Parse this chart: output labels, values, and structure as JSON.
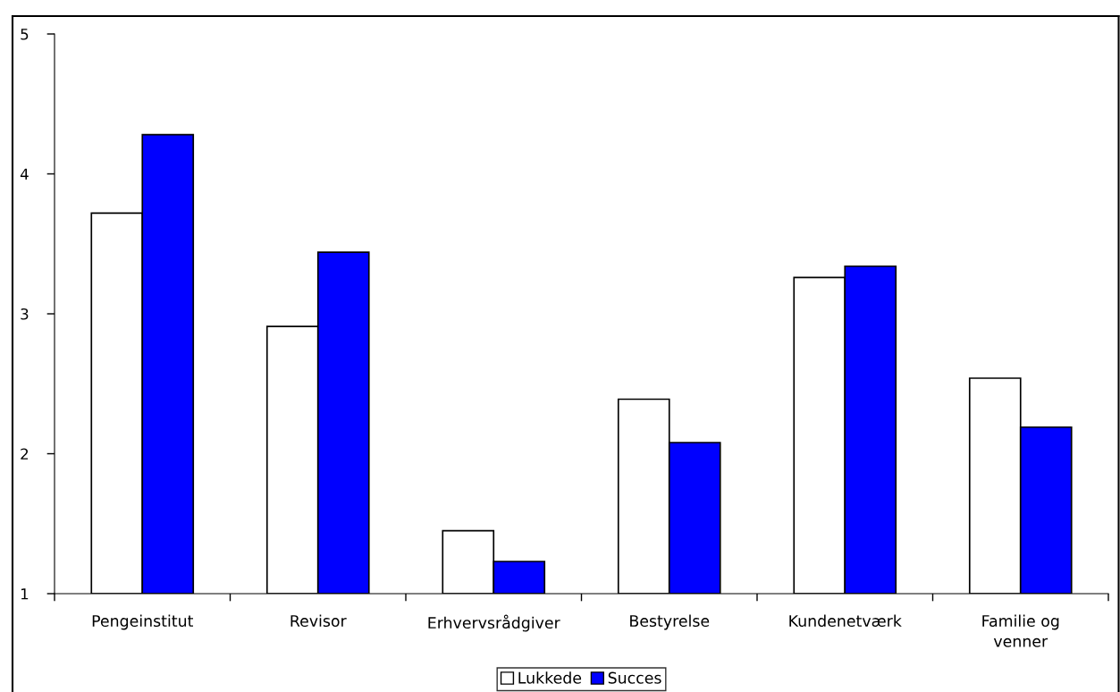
{
  "chart_data": {
    "type": "bar",
    "categories": [
      "Pengeinstitut",
      "Revisor",
      "Erhvervsrådgiver",
      "Bestyrelse",
      "Kundenetværk",
      "Familie og\nvenner"
    ],
    "series": [
      {
        "name": "Lukkede",
        "color": "#ffffff",
        "values": [
          3.72,
          2.91,
          1.45,
          2.39,
          3.26,
          2.54
        ]
      },
      {
        "name": "Succes",
        "color": "#0000ff",
        "values": [
          4.28,
          3.44,
          1.23,
          2.08,
          3.34,
          2.19
        ]
      }
    ],
    "ylim": [
      1,
      5
    ],
    "yticks": [
      1,
      2,
      3,
      4,
      5
    ],
    "grid": false,
    "legend": "bottom"
  }
}
